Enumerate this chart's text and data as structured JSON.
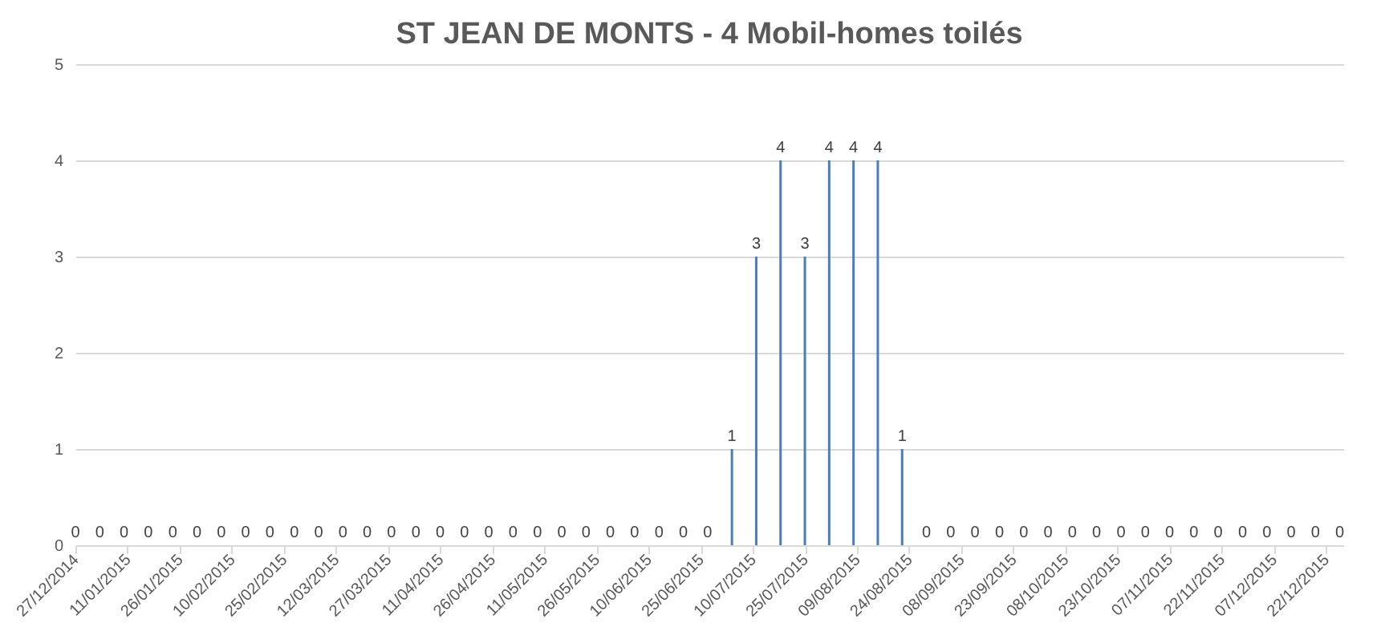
{
  "chart_data": {
    "type": "bar",
    "title": "ST JEAN DE MONTS - 4 Mobil-homes toilés",
    "x": [
      "2014-12-27",
      "2015-01-03",
      "2015-01-10",
      "2015-01-17",
      "2015-01-24",
      "2015-01-31",
      "2015-02-07",
      "2015-02-14",
      "2015-02-21",
      "2015-02-28",
      "2015-03-07",
      "2015-03-14",
      "2015-03-21",
      "2015-03-28",
      "2015-04-04",
      "2015-04-11",
      "2015-04-18",
      "2015-04-25",
      "2015-05-02",
      "2015-05-09",
      "2015-05-16",
      "2015-05-23",
      "2015-05-30",
      "2015-06-06",
      "2015-06-13",
      "2015-06-20",
      "2015-06-27",
      "2015-07-04",
      "2015-07-11",
      "2015-07-18",
      "2015-07-25",
      "2015-08-01",
      "2015-08-08",
      "2015-08-15",
      "2015-08-22",
      "2015-08-29",
      "2015-09-05",
      "2015-09-12",
      "2015-09-19",
      "2015-09-26",
      "2015-10-03",
      "2015-10-10",
      "2015-10-17",
      "2015-10-24",
      "2015-10-31",
      "2015-11-07",
      "2015-11-14",
      "2015-11-21",
      "2015-11-28",
      "2015-12-05",
      "2015-12-12",
      "2015-12-19",
      "2015-12-26"
    ],
    "values": [
      0,
      0,
      0,
      0,
      0,
      0,
      0,
      0,
      0,
      0,
      0,
      0,
      0,
      0,
      0,
      0,
      0,
      0,
      0,
      0,
      0,
      0,
      0,
      0,
      0,
      0,
      0,
      1,
      3,
      4,
      3,
      4,
      4,
      4,
      1,
      0,
      0,
      0,
      0,
      0,
      0,
      0,
      0,
      0,
      0,
      0,
      0,
      0,
      0,
      0,
      0,
      0,
      0
    ],
    "color": "#4a7ebb",
    "xlim": [
      "2014-12-27",
      "2015-12-27"
    ],
    "xticks": [
      {
        "value": "2014-12-27",
        "label": "27/12/2014"
      },
      {
        "value": "2015-01-11",
        "label": "11/01/2015"
      },
      {
        "value": "2015-01-26",
        "label": "26/01/2015"
      },
      {
        "value": "2015-02-10",
        "label": "10/02/2015"
      },
      {
        "value": "2015-02-25",
        "label": "25/02/2015"
      },
      {
        "value": "2015-03-12",
        "label": "12/03/2015"
      },
      {
        "value": "2015-03-27",
        "label": "27/03/2015"
      },
      {
        "value": "2015-04-11",
        "label": "11/04/2015"
      },
      {
        "value": "2015-04-26",
        "label": "26/04/2015"
      },
      {
        "value": "2015-05-11",
        "label": "11/05/2015"
      },
      {
        "value": "2015-05-26",
        "label": "26/05/2015"
      },
      {
        "value": "2015-06-10",
        "label": "10/06/2015"
      },
      {
        "value": "2015-06-25",
        "label": "25/06/2015"
      },
      {
        "value": "2015-07-10",
        "label": "10/07/2015"
      },
      {
        "value": "2015-07-25",
        "label": "25/07/2015"
      },
      {
        "value": "2015-08-09",
        "label": "09/08/2015"
      },
      {
        "value": "2015-08-24",
        "label": "24/08/2015"
      },
      {
        "value": "2015-09-08",
        "label": "08/09/2015"
      },
      {
        "value": "2015-09-23",
        "label": "23/09/2015"
      },
      {
        "value": "2015-10-08",
        "label": "08/10/2015"
      },
      {
        "value": "2015-10-23",
        "label": "23/10/2015"
      },
      {
        "value": "2015-11-07",
        "label": "07/11/2015"
      },
      {
        "value": "2015-11-22",
        "label": "22/11/2015"
      },
      {
        "value": "2015-12-07",
        "label": "07/12/2015"
      },
      {
        "value": "2015-12-22",
        "label": "22/12/2015"
      }
    ],
    "ylim": [
      0,
      5
    ],
    "yticks": [
      0,
      1,
      2,
      3,
      4,
      5
    ],
    "grid": "y",
    "data_labels": true,
    "legend": false
  }
}
